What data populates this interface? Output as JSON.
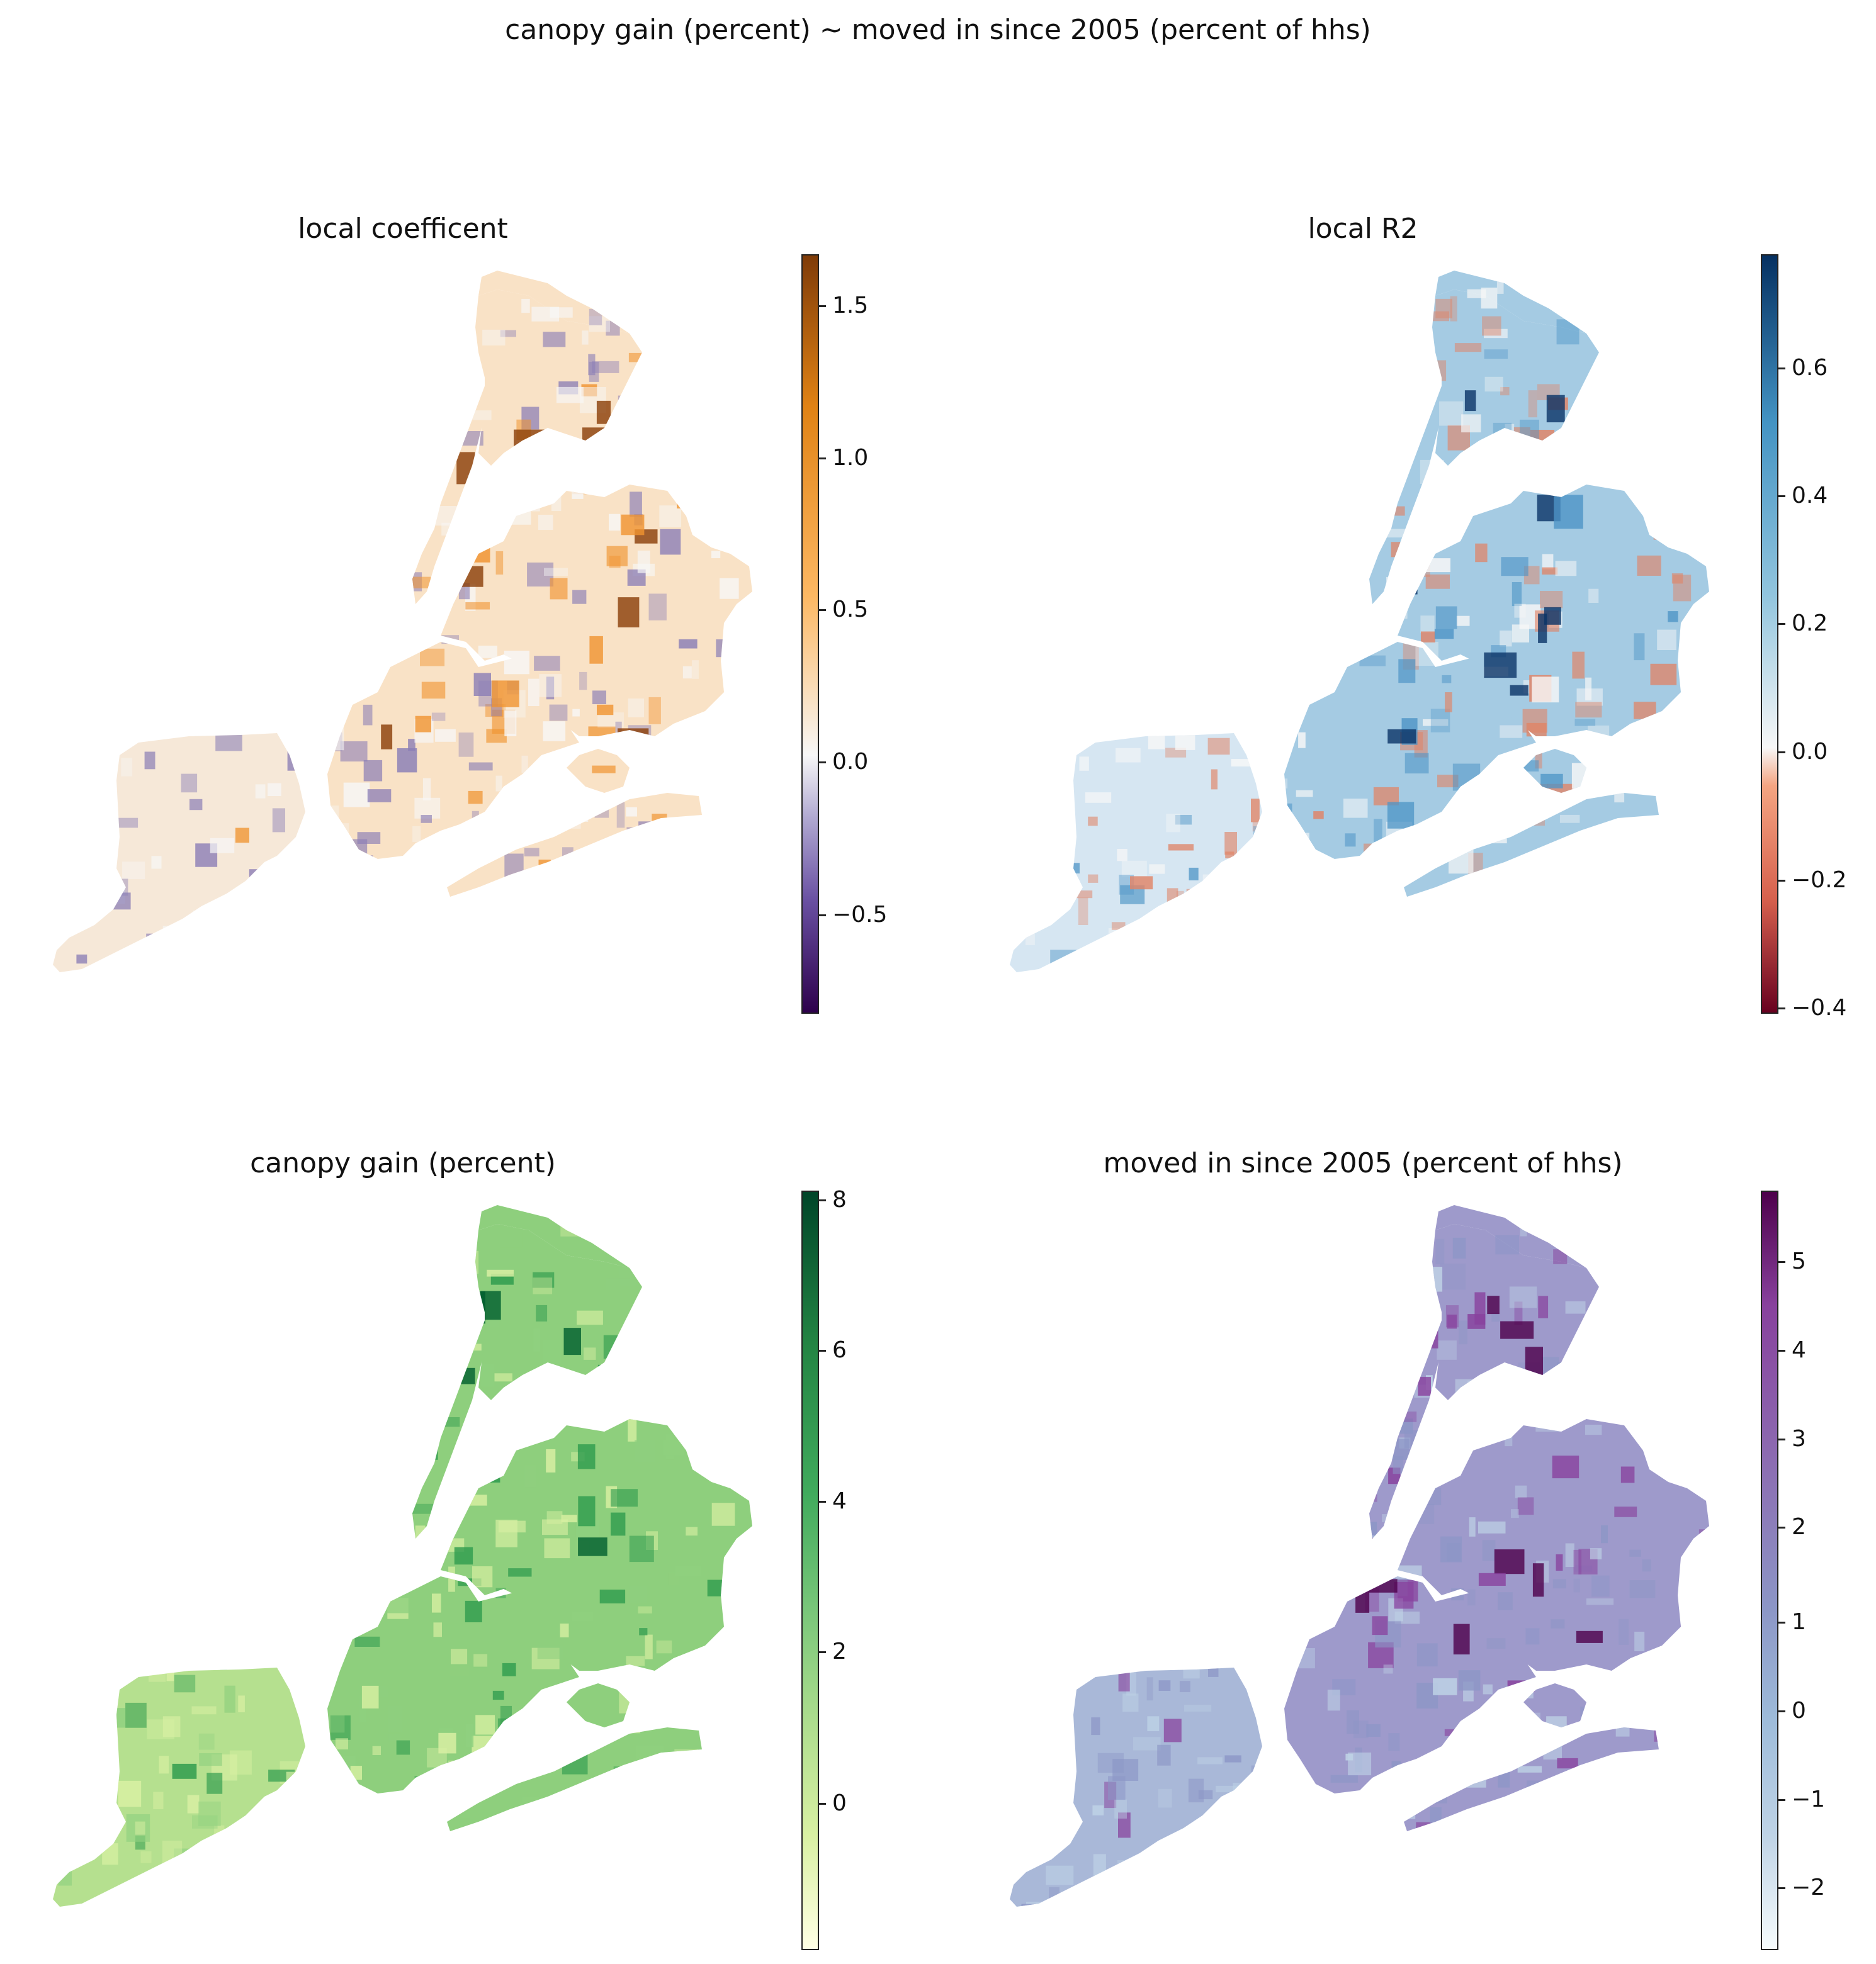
{
  "figure": {
    "suptitle": "canopy gain (percent) ~ moved in since 2005 (percent of hhs)"
  },
  "panels": [
    {
      "id": "coef",
      "title": "local coefficent",
      "colormap": "PuOr",
      "colors": {
        "low": "#3f0f6e",
        "mid": "#f7f7f7",
        "high": "#8a3d06",
        "midlow": "#8c7fb6",
        "midhigh": "#f0932f"
      },
      "ticks": [
        "1.5",
        "1.0",
        "0.5",
        "0.0",
        "−0.5"
      ]
    },
    {
      "id": "r2",
      "title": "local R2",
      "colormap": "RdBu",
      "colors": {
        "low": "#6b0215",
        "mid": "#f7f7f7",
        "high": "#0a3366",
        "midlow": "#e08467",
        "midhigh": "#4d94c6"
      },
      "ticks": [
        "0.6",
        "0.4",
        "0.2",
        "0.0",
        "−0.2",
        "−0.4"
      ]
    },
    {
      "id": "canopy",
      "title": "canopy gain (percent)",
      "colormap": "YlGn",
      "colors": {
        "low": "#ffffe3",
        "mid": "#8fd07f",
        "high": "#005e2e",
        "midlow": "#d9f0a3",
        "midhigh": "#2e9b4d"
      },
      "ticks": [
        "8",
        "6",
        "4",
        "2",
        "0"
      ]
    },
    {
      "id": "moved",
      "title": "moved in since 2005 (percent of hhs)",
      "colormap": "BuPu",
      "colors": {
        "low": "#f7fcfd",
        "mid": "#8c96c6",
        "high": "#4d004b",
        "midlow": "#bfd3e6",
        "midhigh": "#88419d"
      },
      "ticks": [
        "5",
        "4",
        "3",
        "2",
        "1",
        "0",
        "−1",
        "−2"
      ]
    }
  ]
}
